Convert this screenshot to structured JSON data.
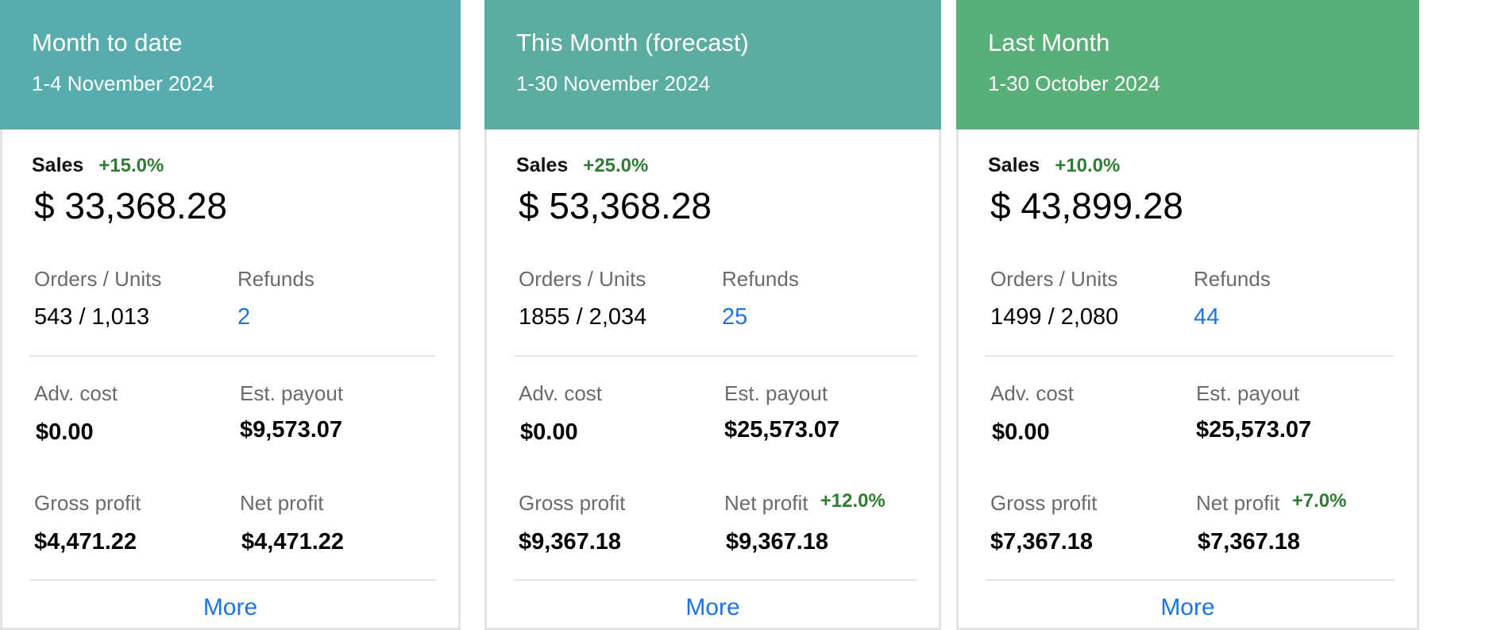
{
  "cards": [
    {
      "title": "Month to date",
      "period": "1-4 November 2024",
      "color": "#57acad",
      "sales_label": "Sales",
      "sales_change": "+15.0%",
      "sales_value": "$ 33,368.28",
      "orders_label": "Orders / Units",
      "orders_value": "543 / 1,013",
      "refunds_label": "Refunds",
      "refunds_value": "2",
      "adv_label": "Adv. cost",
      "adv_value": "$0.00",
      "payout_label": "Est. payout",
      "payout_value": "$9,573.07",
      "gross_label": "Gross profit",
      "gross_value": "$4,471.22",
      "net_label": "Net profit",
      "net_change": "",
      "net_value": "$4,471.22",
      "more": "More"
    },
    {
      "title": "This Month (forecast)",
      "period": "1-30 November 2024",
      "color": "#5aad9f",
      "sales_label": "Sales",
      "sales_change": "+25.0%",
      "sales_value": "$ 53,368.28",
      "orders_label": "Orders / Units",
      "orders_value": "1855 / 2,034",
      "refunds_label": "Refunds",
      "refunds_value": "25",
      "adv_label": "Adv. cost",
      "adv_value": "$0.00",
      "payout_label": "Est. payout",
      "payout_value": "$25,573.07",
      "gross_label": "Gross profit",
      "gross_value": "$9,367.18",
      "net_label": "Net profit",
      "net_change": "+12.0%",
      "net_value": "$9,367.18",
      "more": "More"
    },
    {
      "title": "Last Month",
      "period": "1-30 October 2024",
      "color": "#58af77",
      "sales_label": "Sales",
      "sales_change": "+10.0%",
      "sales_value": "$ 43,899.28",
      "orders_label": "Orders / Units",
      "orders_value": "1499 / 2,080",
      "refunds_label": "Refunds",
      "refunds_value": "44",
      "adv_label": "Adv. cost",
      "adv_value": "$0.00",
      "payout_label": "Est. payout",
      "payout_value": "$25,573.07",
      "gross_label": "Gross profit",
      "gross_value": "$7,367.18",
      "net_label": "Net profit",
      "net_change": "+7.0%",
      "net_value": "$7,367.18",
      "more": "More"
    }
  ]
}
